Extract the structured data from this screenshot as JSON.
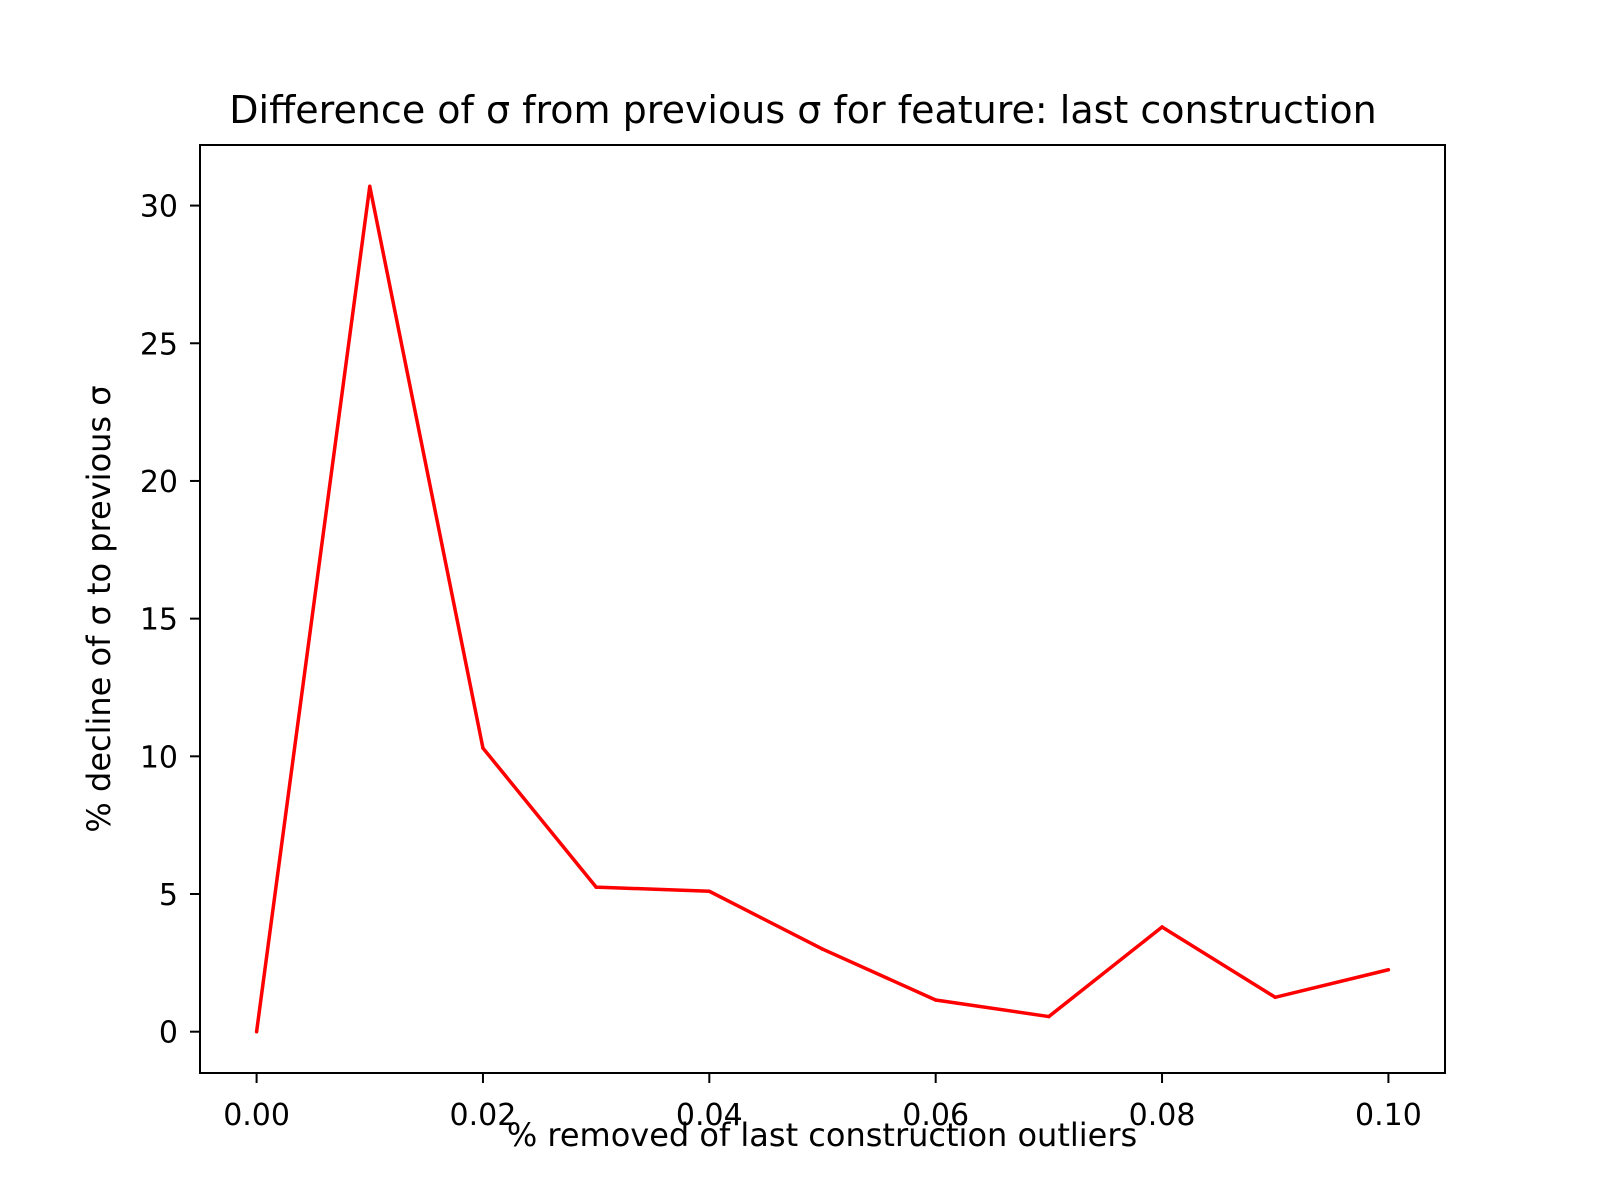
{
  "chart_data": {
    "type": "line",
    "title": "Difference of σ from previous σ for feature: last construction",
    "xlabel": "% removed of last construction outliers",
    "ylabel": "% decline of σ to previous σ",
    "xlim": [
      -0.005,
      0.105
    ],
    "ylim": [
      -1.5,
      32.2
    ],
    "xticks": [
      0.0,
      0.02,
      0.04,
      0.06,
      0.08,
      0.1
    ],
    "xtick_labels": [
      "0.00",
      "0.02",
      "0.04",
      "0.06",
      "0.08",
      "0.10"
    ],
    "yticks": [
      0,
      5,
      10,
      15,
      20,
      25,
      30
    ],
    "ytick_labels": [
      "0",
      "5",
      "10",
      "15",
      "20",
      "25",
      "30"
    ],
    "grid": false,
    "legend": "none",
    "series": [
      {
        "color": "#ff0000",
        "x": [
          0.0,
          0.01,
          0.02,
          0.03,
          0.04,
          0.05,
          0.06,
          0.07,
          0.08,
          0.09,
          0.1
        ],
        "y": [
          0.0,
          30.7,
          10.3,
          5.25,
          5.1,
          3.0,
          1.15,
          0.55,
          3.8,
          1.25,
          2.25
        ]
      }
    ]
  }
}
